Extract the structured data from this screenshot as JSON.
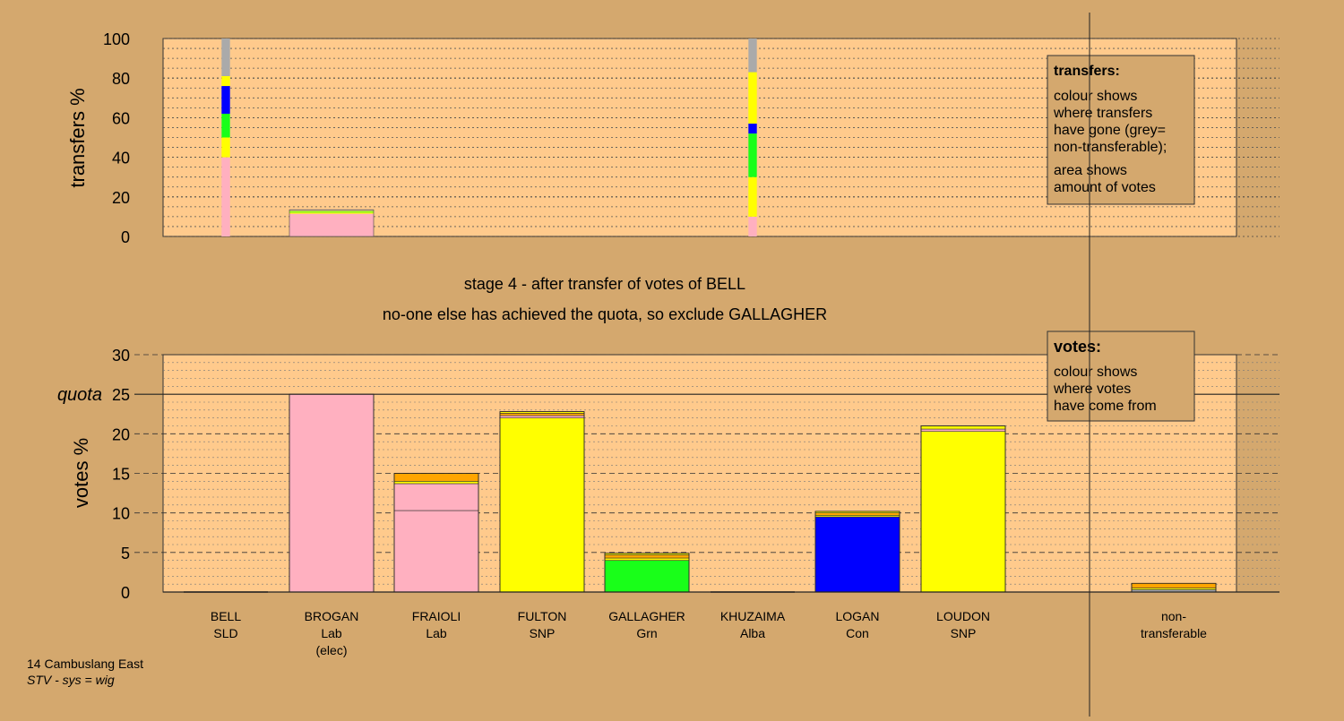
{
  "colors": {
    "background": "#d4a86e",
    "plot_bg": "#ffca8c",
    "SLD": "#ffa500",
    "Lab": "#ffb0c0",
    "SNP": "#ffff00",
    "Grn": "#19ff19",
    "Alba": "#d4a86e",
    "Con": "#0000ff",
    "nontransferable": "#aaaaaa"
  },
  "headings": {
    "stage": "stage 4 - after transfer of votes of BELL",
    "action": "no-one else has achieved the quota, so exclude GALLAGHER"
  },
  "footer": {
    "ward": "14 Cambuslang East",
    "system": "STV - sys = wig"
  },
  "transfers_box": {
    "title": "transfers:",
    "line1": "colour shows",
    "line2": "where transfers",
    "line3": "have gone (grey=",
    "line4": "non-transferable);",
    "line5": "area shows",
    "line6": "amount of votes"
  },
  "votes_box": {
    "title": "votes:",
    "line1": "colour shows",
    "line2": "where votes",
    "line3": "have come from"
  },
  "chart_data": [
    {
      "type": "bar",
      "ylabel": "transfers %",
      "ylim": [
        0,
        100
      ],
      "yticks": [
        0,
        20,
        40,
        60,
        80,
        100
      ],
      "grid": true,
      "bars": [
        {
          "column": "BELL",
          "width_fraction": 0.1,
          "segments": [
            {
              "party": "Lab",
              "value": 40
            },
            {
              "party": "SNP",
              "value": 10
            },
            {
              "party": "Grn",
              "value": 12
            },
            {
              "party": "Con",
              "value": 14
            },
            {
              "party": "SNP",
              "value": 5
            },
            {
              "party": "nontransferable",
              "value": 19
            }
          ]
        },
        {
          "column": "BROGAN",
          "width_fraction": 1.0,
          "segments": [
            {
              "party": "Lab",
              "value": 11.5
            },
            {
              "party": "SNP",
              "value": 0.6
            },
            {
              "party": "Grn",
              "value": 0.4
            },
            {
              "party": "SNP",
              "value": 0.4
            },
            {
              "party": "nontransferable",
              "value": 0.6
            }
          ]
        },
        {
          "column": "KHUZAIMA",
          "width_fraction": 0.1,
          "segments": [
            {
              "party": "Lab",
              "value": 10
            },
            {
              "party": "SNP",
              "value": 20
            },
            {
              "party": "Grn",
              "value": 22
            },
            {
              "party": "Con",
              "value": 5
            },
            {
              "party": "SNP",
              "value": 26
            },
            {
              "party": "nontransferable",
              "value": 17
            }
          ]
        }
      ]
    },
    {
      "type": "bar",
      "ylabel": "votes %",
      "ylim": [
        0,
        30
      ],
      "yticks": [
        0,
        5,
        10,
        15,
        20,
        25,
        30
      ],
      "quota": 25,
      "quota_label": "quota",
      "grid": true,
      "categories": [
        {
          "name": "BELL",
          "party": "SLD"
        },
        {
          "name": "BROGAN",
          "party": "Lab",
          "note": "(elec)"
        },
        {
          "name": "FRAIOLI",
          "party": "Lab"
        },
        {
          "name": "FULTON",
          "party": "SNP"
        },
        {
          "name": "GALLAGHER",
          "party": "Grn"
        },
        {
          "name": "KHUZAIMA",
          "party": "Alba"
        },
        {
          "name": "LOGAN",
          "party": "Con"
        },
        {
          "name": "LOUDON",
          "party": "SNP"
        },
        {
          "name": "",
          "party": ""
        },
        {
          "name": "non-",
          "party": "transferable"
        }
      ],
      "bars": [
        {
          "column": "BELL",
          "segments": []
        },
        {
          "column": "BROGAN",
          "segments": [
            {
              "party": "Lab",
              "value": 25
            }
          ]
        },
        {
          "column": "FRAIOLI",
          "segments": [
            {
              "party": "Lab",
              "value": 10.3
            },
            {
              "party": "Lab",
              "value": 3.4
            },
            {
              "party": "SNP",
              "value": 0.3
            },
            {
              "party": "SLD",
              "value": 1.0
            }
          ]
        },
        {
          "column": "FULTON",
          "segments": [
            {
              "party": "SNP",
              "value": 22.0
            },
            {
              "party": "Lab",
              "value": 0.3
            },
            {
              "party": "SLD",
              "value": 0.3
            },
            {
              "party": "SNP",
              "value": 0.2
            }
          ]
        },
        {
          "column": "GALLAGHER",
          "segments": [
            {
              "party": "Grn",
              "value": 4.0
            },
            {
              "party": "SNP",
              "value": 0.3
            },
            {
              "party": "SLD",
              "value": 0.4
            },
            {
              "party": "SNP",
              "value": 0.2
            }
          ]
        },
        {
          "column": "KHUZAIMA",
          "segments": []
        },
        {
          "column": "LOGAN",
          "segments": [
            {
              "party": "Con",
              "value": 9.5
            },
            {
              "party": "SNP",
              "value": 0.2
            },
            {
              "party": "SLD",
              "value": 0.3
            },
            {
              "party": "SNP",
              "value": 0.2
            }
          ]
        },
        {
          "column": "LOUDON",
          "segments": [
            {
              "party": "SNP",
              "value": 20.3
            },
            {
              "party": "Lab",
              "value": 0.3
            },
            {
              "party": "SNP",
              "value": 0.4
            }
          ]
        },
        {
          "column": "",
          "segments": []
        },
        {
          "column": "non-transferable",
          "segments": [
            {
              "party": "nontransferable",
              "value": 0.3
            },
            {
              "party": "SNP",
              "value": 0.2
            },
            {
              "party": "SLD",
              "value": 0.6
            }
          ]
        }
      ]
    }
  ]
}
